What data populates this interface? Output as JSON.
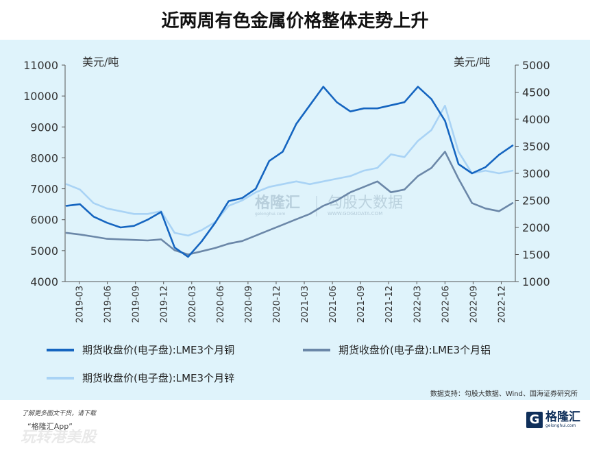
{
  "title": "近两周有色金属价格整体走势上升",
  "chart_data": {
    "type": "line",
    "y_left": {
      "label": "美元/吨",
      "range": [
        4000,
        11000
      ],
      "ticks": [
        4000,
        5000,
        6000,
        7000,
        8000,
        9000,
        10000,
        11000
      ]
    },
    "y_right": {
      "label": "美元/吨",
      "range": [
        1000,
        5000
      ],
      "ticks": [
        1000,
        1500,
        2000,
        2500,
        3000,
        3500,
        4000,
        4500,
        5000
      ]
    },
    "x_labels": [
      "2019-03",
      "2019-06",
      "2019-09",
      "2019-12",
      "2020-03",
      "2020-06",
      "2020-09",
      "2020-12",
      "2021-03",
      "2021-06",
      "2021-09",
      "2021-12",
      "2022-03",
      "2022-06",
      "2022-09",
      "2022-12"
    ],
    "series": [
      {
        "name": "期货收盘价(电子盘):LME3个月铜",
        "axis": "left",
        "color": "#1565c0",
        "values": [
          6450,
          6500,
          6100,
          5900,
          5750,
          5800,
          6000,
          6250,
          5100,
          4800,
          5300,
          5900,
          6600,
          6700,
          7000,
          7900,
          8200,
          9100,
          9700,
          10300,
          9800,
          9500,
          9600,
          9600,
          9700,
          9800,
          10300,
          9900,
          9200,
          7800,
          7500,
          7700,
          8100,
          8400
        ]
      },
      {
        "name": "期货收盘价(电子盘):LME3个月铝",
        "axis": "right",
        "color": "#6b87a8",
        "values": [
          1900,
          1870,
          1830,
          1790,
          1780,
          1770,
          1760,
          1780,
          1580,
          1500,
          1560,
          1620,
          1700,
          1750,
          1850,
          1950,
          2050,
          2150,
          2250,
          2400,
          2500,
          2650,
          2750,
          2850,
          2650,
          2700,
          2950,
          3100,
          3400,
          2900,
          2450,
          2350,
          2300,
          2450
        ]
      },
      {
        "name": "期货收盘价(电子盘):LME3个月锌",
        "axis": "right",
        "color": "#a9d3f5",
        "values": [
          2800,
          2700,
          2450,
          2350,
          2300,
          2250,
          2250,
          2300,
          1900,
          1850,
          1950,
          2100,
          2400,
          2500,
          2650,
          2750,
          2800,
          2850,
          2800,
          2850,
          2900,
          2950,
          3050,
          3100,
          3350,
          3300,
          3600,
          3800,
          4250,
          3400,
          3000,
          3050,
          3000,
          3050
        ]
      }
    ]
  },
  "legend": {
    "copper": "期货收盘价(电子盘):LME3个月铜",
    "aluminum": "期货收盘价(电子盘):LME3个月铝",
    "zinc": "期货收盘价(电子盘):LME3个月锌"
  },
  "source": "数据支持：勾股大数据、Wind、国海证券研究所",
  "watermark": {
    "brand": "格隆汇",
    "brand_url": "gelonghui.com",
    "partner": "勾股大数据",
    "partner_url": "WWW.GOGUDATA.COM"
  },
  "footer": {
    "line1": "了解更多图文干货，请下载",
    "line2": "“格隆汇App”",
    "line3": "玩转港美股",
    "logo_text": "格隆汇",
    "logo_url": "gelonghui.com"
  }
}
